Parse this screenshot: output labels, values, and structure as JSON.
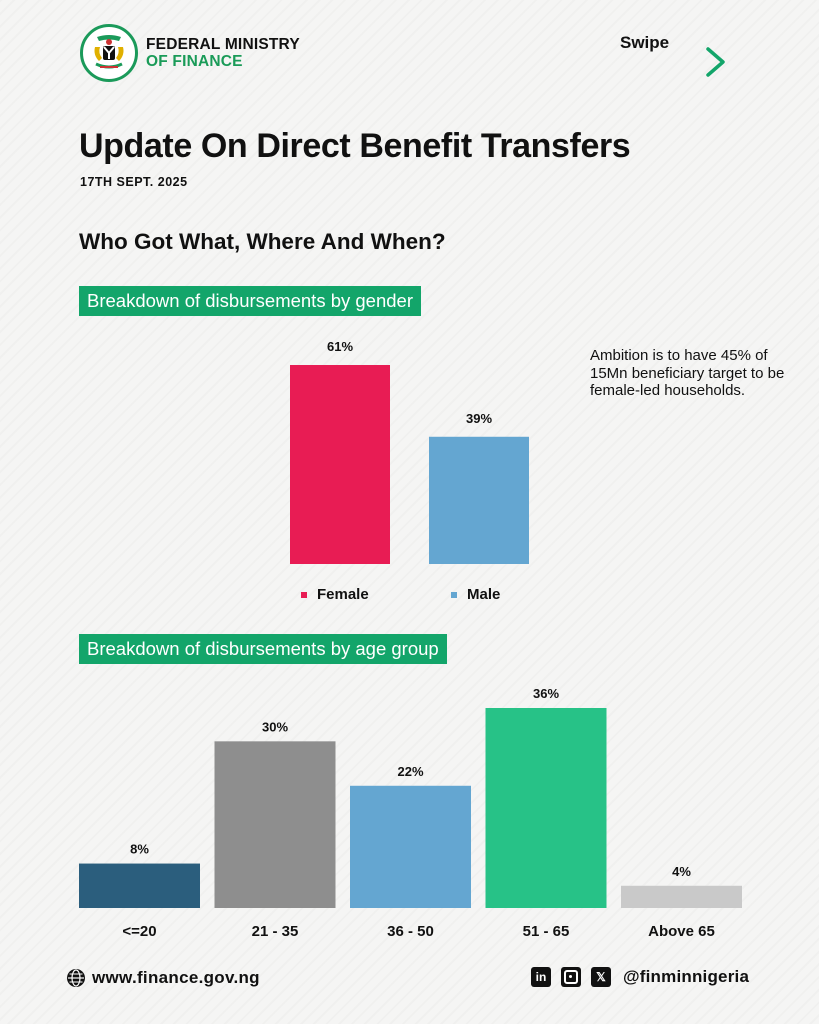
{
  "header": {
    "org_line1": "FEDERAL MINISTRY",
    "org_line2": "OF FINANCE",
    "swipe": "Swipe"
  },
  "title": "Update On Direct Benefit Transfers",
  "date": "17TH SEPT. 2025",
  "subtitle": "Who Got What, Where And When?",
  "note": "Ambition is to have 45% of 15Mn beneficiary target to be female-led households.",
  "footer": {
    "website": "www.finance.gov.ng",
    "handle": "@finminnigeria",
    "linkedin_glyph": "in",
    "x_glyph": "𝕏"
  },
  "colors": {
    "brand_green": "#13a56a",
    "female": "#e81c54",
    "male": "#64a6d1",
    "age_bars": [
      "#2b5e7d",
      "#8e8e8e",
      "#64a6d1",
      "#27c287",
      "#c9c9c9"
    ]
  },
  "chart_data": [
    {
      "type": "bar",
      "title": "Breakdown of disbursements by gender",
      "categories": [
        "Female",
        "Male"
      ],
      "values": [
        61,
        39
      ],
      "data_labels": [
        "61%",
        "39%"
      ],
      "legend": "bottom",
      "ylim": [
        0,
        61
      ]
    },
    {
      "type": "bar",
      "title": "Breakdown of disbursements by age group",
      "categories": [
        "<=20",
        "21 - 35",
        "36 - 50",
        "51 - 65",
        "Above 65"
      ],
      "values": [
        8,
        30,
        22,
        36,
        4
      ],
      "data_labels": [
        "8%",
        "30%",
        "22%",
        "36%",
        "4%"
      ],
      "ylim": [
        0,
        36
      ]
    }
  ]
}
